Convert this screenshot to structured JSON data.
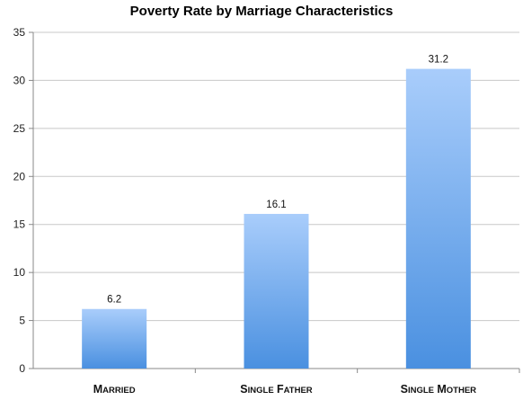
{
  "chart_data": {
    "type": "bar",
    "title": "Poverty Rate by Marriage Characteristics",
    "xlabel": "",
    "ylabel": "",
    "categories": [
      "Married",
      "Single father",
      "Single Mother"
    ],
    "values": [
      6.2,
      16.1,
      31.2
    ],
    "data_labels": [
      "6.2",
      "16.1",
      "31.2"
    ],
    "ylim": [
      0,
      35
    ],
    "yticks": [
      0,
      5,
      10,
      15,
      20,
      25,
      30,
      35
    ],
    "grid": true,
    "legend": "none",
    "bar_color_top": "#a9cdfb",
    "bar_color_bottom": "#4a90e0",
    "grid_color": "#c8c8c8"
  }
}
